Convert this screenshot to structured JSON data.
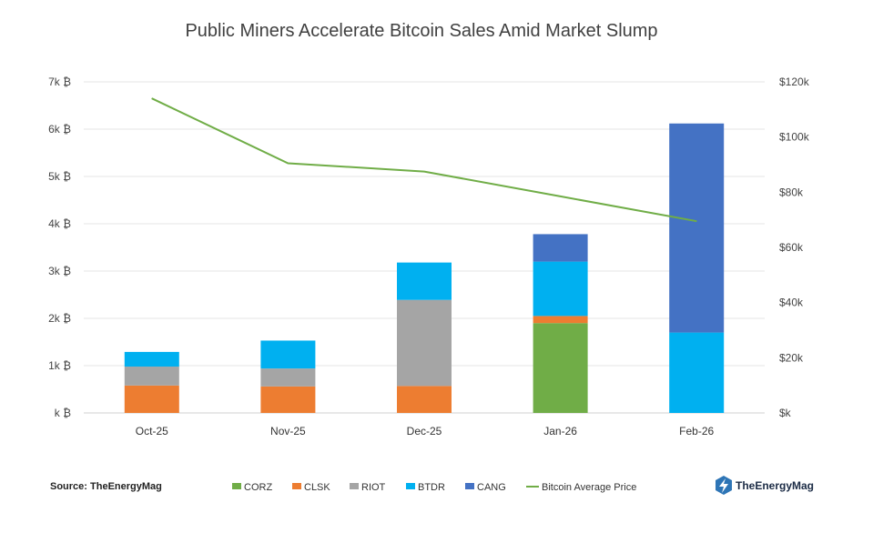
{
  "chart_data": {
    "type": "bar",
    "stacked": true,
    "title": "Public Miners Accelerate Bitcoin Sales Amid Market Slump",
    "categories": [
      "Oct-25",
      "Nov-25",
      "Dec-25",
      "Jan-26",
      "Feb-26"
    ],
    "series": [
      {
        "name": "CORZ",
        "color": "#70ad47",
        "values": [
          0,
          0,
          0,
          1900,
          0
        ]
      },
      {
        "name": "CLSK",
        "color": "#ed7d31",
        "values": [
          580,
          560,
          570,
          150,
          0
        ]
      },
      {
        "name": "RIOT",
        "color": "#a5a5a5",
        "values": [
          400,
          380,
          1820,
          0,
          0
        ]
      },
      {
        "name": "BTDR",
        "color": "#00b0f0",
        "values": [
          310,
          590,
          790,
          1150,
          1700
        ]
      },
      {
        "name": "CANG",
        "color": "#4472c4",
        "values": [
          0,
          0,
          0,
          580,
          4420
        ]
      }
    ],
    "line": {
      "name": "Bitcoin Average Price",
      "color": "#70ad47",
      "axis": "right",
      "values": [
        114000,
        90500,
        87500,
        78500,
        69500
      ]
    },
    "y_left": {
      "ylim": [
        0,
        7000
      ],
      "ticks": [
        0,
        1000,
        2000,
        3000,
        4000,
        5000,
        6000,
        7000
      ],
      "tick_labels": [
        "k ₿",
        "1k ₿",
        "2k ₿",
        "3k ₿",
        "4k ₿",
        "5k ₿",
        "6k ₿",
        "7k ₿"
      ]
    },
    "y_right": {
      "ylim": [
        0,
        120000
      ],
      "ticks": [
        0,
        20000,
        40000,
        60000,
        80000,
        100000,
        120000
      ],
      "tick_labels": [
        "$k",
        "$20k",
        "$40k",
        "$60k",
        "$80k",
        "$100k",
        "$120k"
      ]
    },
    "grid": true,
    "legend_position": "bottom"
  },
  "footer": {
    "source": "Source: TheEnergyMag",
    "brand": "TheEnergyMag",
    "brand_color": "#2e75b6"
  }
}
